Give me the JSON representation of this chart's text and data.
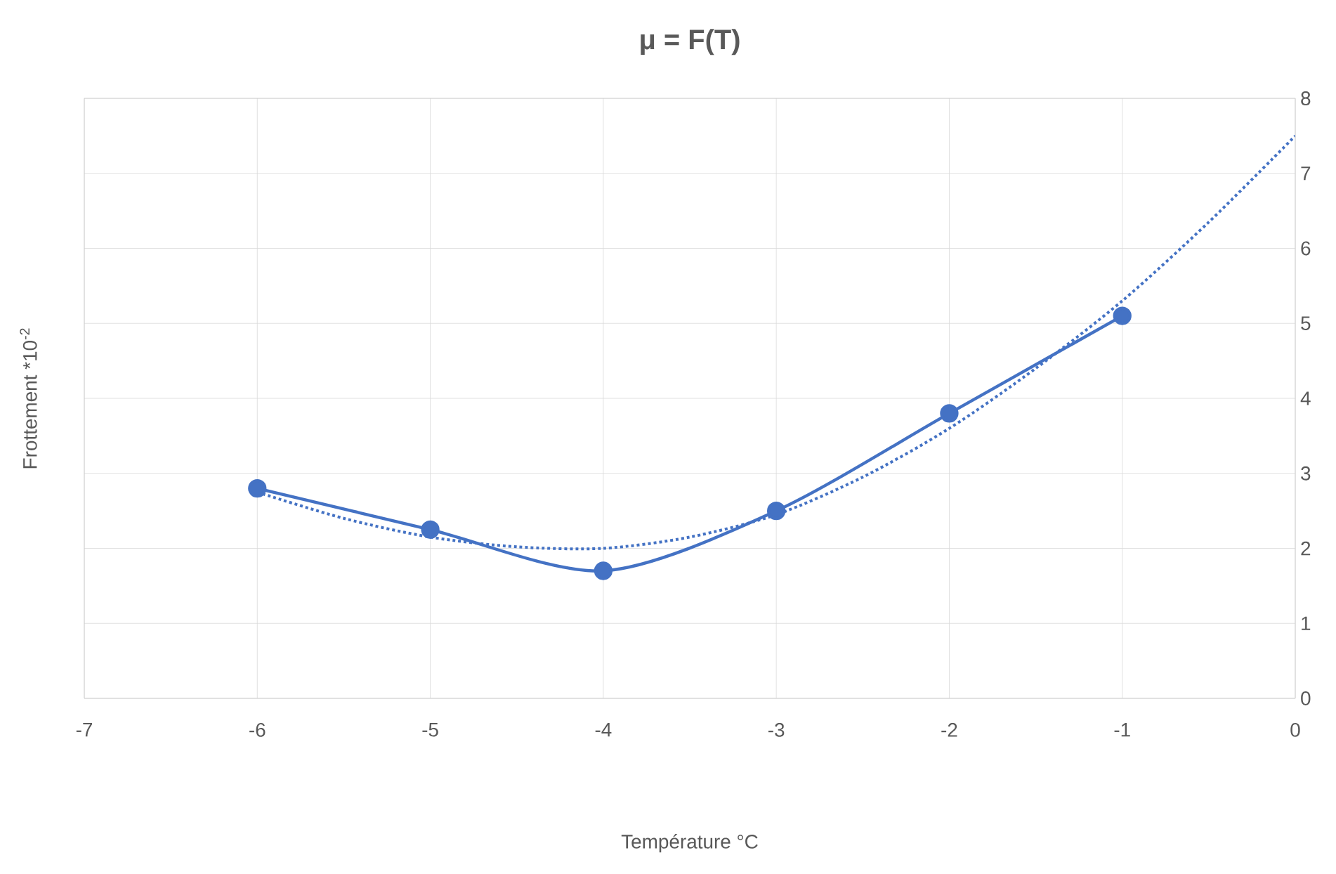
{
  "chart_data": {
    "type": "line",
    "title": "μ =  F(T)",
    "xlabel": "Température °C",
    "ylabel": "Frottement *10$^{-2}$",
    "xlim": [
      -7,
      0
    ],
    "xticks": [
      -7,
      -6,
      -5,
      -4,
      -3,
      -2,
      -1,
      0
    ],
    "ylim": [
      0,
      8
    ],
    "yticks": [
      0,
      1,
      2,
      3,
      4,
      5,
      6,
      7,
      8
    ],
    "grid": true,
    "series": [
      {
        "color": "#4472c4",
        "marker": "circle",
        "line_style": "solid",
        "x": [
          -6,
          -5,
          -4,
          -3,
          -2,
          -1
        ],
        "values": [
          2.8,
          2.25,
          1.7,
          2.5,
          3.8,
          5.1
        ]
      },
      {
        "color": "#4472c4",
        "marker": "none",
        "line_style": "dotted",
        "x": [
          -6,
          -5.5,
          -5,
          -4.5,
          -4,
          -3.5,
          -3,
          -2.5,
          -2,
          -1.5,
          -1,
          -0.5,
          0
        ],
        "values": [
          2.75,
          2.4,
          2.15,
          2.02,
          2.0,
          2.15,
          2.45,
          2.95,
          3.6,
          4.4,
          5.3,
          6.35,
          7.5
        ]
      }
    ]
  }
}
